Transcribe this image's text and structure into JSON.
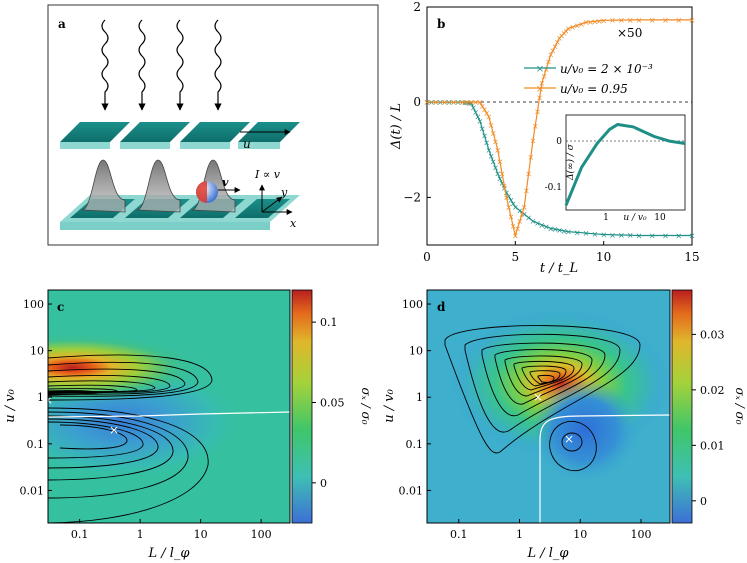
{
  "panels": {
    "a": {
      "label": "a",
      "u_label": "u",
      "v_label": "v",
      "current_label": "I ∝ v",
      "axis_x": "x",
      "axis_y": "y"
    },
    "b": {
      "label": "b",
      "x50_label": "×50",
      "inset_xlabel": "u / v₀",
      "inset_ylabel": "Δ(∞) / σ",
      "inset_ticks_x": [
        "1",
        "10"
      ],
      "inset_ticks_y": [
        "0",
        "-0.1"
      ]
    },
    "c": {
      "label": "c",
      "cbar_label": "σₓ / σ₀"
    },
    "d": {
      "label": "d",
      "cbar_label": "σₓ / σ₀"
    }
  },
  "chart_data": [
    {
      "type": "line",
      "panel": "b",
      "xlabel": "t / t_L",
      "ylabel": "Δ(t) / L",
      "xlim": [
        0,
        15
      ],
      "ylim": [
        -3,
        2
      ],
      "x_ticks": [
        "0",
        "5",
        "10",
        "15"
      ],
      "y_ticks": [
        "2",
        "0",
        "−2"
      ],
      "legend_position": "top-right",
      "series": [
        {
          "name": "u/v₀ = 2 × 10⁻³",
          "color": "#1f8f86",
          "marker": "x",
          "points": [
            [
              0,
              0
            ],
            [
              1,
              0
            ],
            [
              2,
              0
            ],
            [
              2.5,
              -0.02
            ],
            [
              3,
              -0.4
            ],
            [
              3.5,
              -1.0
            ],
            [
              4,
              -1.5
            ],
            [
              4.5,
              -1.9
            ],
            [
              5,
              -2.2
            ],
            [
              6,
              -2.5
            ],
            [
              7,
              -2.65
            ],
            [
              8,
              -2.72
            ],
            [
              10,
              -2.78
            ],
            [
              12,
              -2.8
            ],
            [
              15,
              -2.8
            ]
          ]
        },
        {
          "name": "u/v₀ = 0.95",
          "color": "#f08a24",
          "marker": "x",
          "points": [
            [
              0,
              0
            ],
            [
              2,
              0
            ],
            [
              3,
              0
            ],
            [
              3.5,
              -0.3
            ],
            [
              4,
              -1.0
            ],
            [
              4.5,
              -2.0
            ],
            [
              5,
              -2.8
            ],
            [
              5.5,
              -2.2
            ],
            [
              6,
              -0.8
            ],
            [
              6.5,
              0.4
            ],
            [
              7,
              1.0
            ],
            [
              7.5,
              1.35
            ],
            [
              8,
              1.55
            ],
            [
              9,
              1.68
            ],
            [
              10,
              1.72
            ],
            [
              12,
              1.73
            ],
            [
              15,
              1.73
            ]
          ]
        }
      ]
    },
    {
      "type": "line",
      "panel": "b-inset",
      "xlabel": "u / v₀",
      "ylabel": "Δ(∞) / σ",
      "x_scale": "log",
      "xlim": [
        0.1,
        20
      ],
      "ylim": [
        -0.14,
        0.06
      ],
      "series": [
        {
          "name": "",
          "color": "#1f8f86",
          "points": [
            [
              0.1,
              -0.13
            ],
            [
              0.2,
              -0.05
            ],
            [
              0.4,
              0.0
            ],
            [
              0.7,
              0.03
            ],
            [
              1,
              0.04
            ],
            [
              2,
              0.035
            ],
            [
              5,
              0.015
            ],
            [
              10,
              0.005
            ],
            [
              20,
              0.0
            ]
          ]
        }
      ]
    },
    {
      "type": "heatmap",
      "panel": "c",
      "xlabel": "L / l_φ",
      "ylabel": "u / v₀",
      "x_scale": "log",
      "y_scale": "log",
      "x_ticks": [
        "0.1",
        "1",
        "10",
        "100"
      ],
      "y_ticks": [
        "100",
        "10",
        "1",
        "0.1",
        "0.01"
      ],
      "colorbar_ticks": [
        "0.1",
        "0.05",
        "0"
      ],
      "maximum_marker": [
        0.035,
        0.85
      ],
      "minimum_marker": [
        0.4,
        0.055
      ]
    },
    {
      "type": "heatmap",
      "panel": "d",
      "xlabel": "L / l_φ",
      "ylabel": "u / v₀",
      "x_scale": "log",
      "y_scale": "log",
      "x_ticks": [
        "0.1",
        "1",
        "10",
        "100"
      ],
      "y_ticks": [
        "100",
        "10",
        "1",
        "0.1",
        "0.01"
      ],
      "colorbar_ticks": [
        "0.03",
        "0.02",
        "0.01",
        "0"
      ],
      "maximum_marker": [
        2.5,
        1.0
      ],
      "minimum_marker": [
        8,
        0.13
      ]
    }
  ]
}
